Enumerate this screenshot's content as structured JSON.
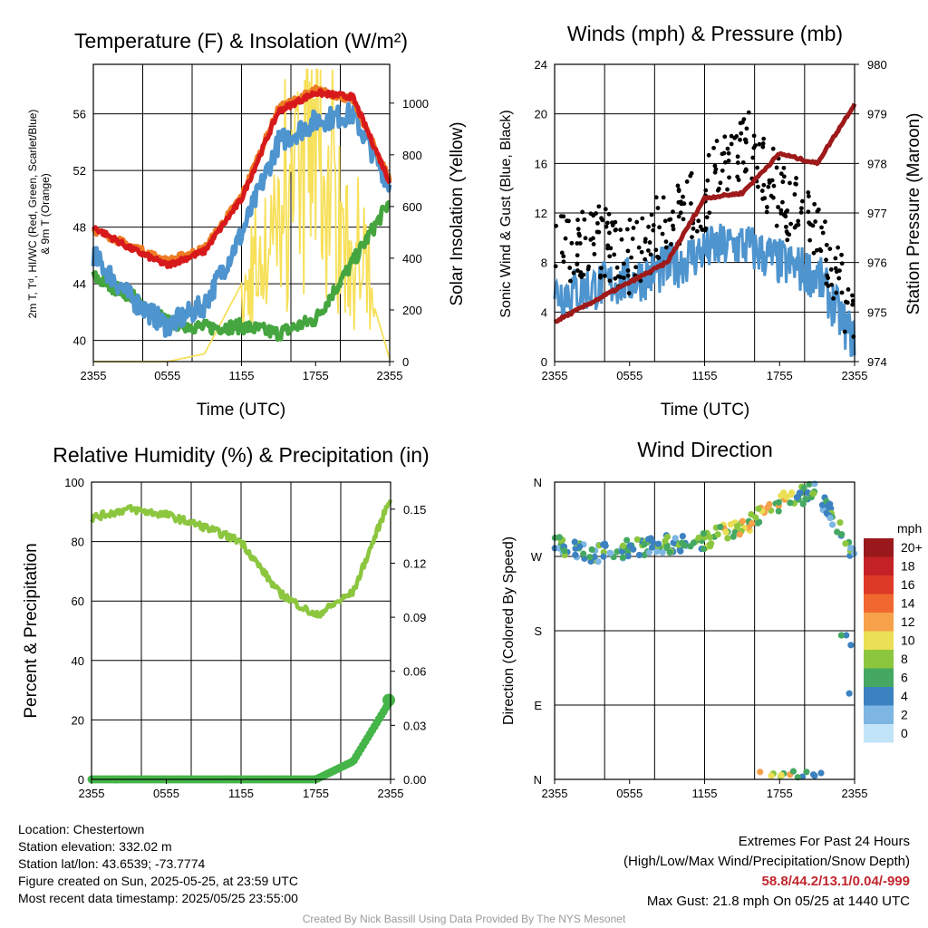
{
  "colors": {
    "temp": "#d7191c",
    "hiwc": "#ee7b22",
    "dew": "#45a53f",
    "t9m": "#4e94ce",
    "solar": "#f7e05a",
    "wind": "#4e94ce",
    "gust": "#000000",
    "pressure": "#9e1a1a",
    "rh": "#8cc63f",
    "precip": "#45b549"
  },
  "panels": {
    "temp": {
      "title": "Temperature (F) & Insolation (W/m²)",
      "ylabel_left_1": "2m T, Tᵈ, HI/WC (Red, Green, Scarlet/Blue)",
      "ylabel_left_2": "& 9m T (Orange)",
      "ylabel_right": "Solar Insolation (Yellow)",
      "xlabel": "Time (UTC)",
      "x_ticks": [
        "2355",
        "0555",
        "1155",
        "1755",
        "2355"
      ],
      "y_ticks_left": [
        "40",
        "44",
        "48",
        "52",
        "56"
      ],
      "y_ticks_right": [
        "0",
        "200",
        "400",
        "600",
        "800",
        "1000"
      ]
    },
    "wind": {
      "title": "Winds (mph) & Pressure (mb)",
      "ylabel_left": "Sonic Wind & Gust (Blue, Black)",
      "ylabel_right": "Station Pressure (Maroon)",
      "xlabel": "Time (UTC)",
      "x_ticks": [
        "2355",
        "0555",
        "1155",
        "1755",
        "2355"
      ],
      "y_ticks_left": [
        "0",
        "4",
        "8",
        "12",
        "16",
        "20",
        "24"
      ],
      "y_ticks_right": [
        "974",
        "975",
        "976",
        "977",
        "978",
        "979",
        "980"
      ]
    },
    "rh": {
      "title": "Relative Humidity (%) & Precipitation (in)",
      "ylabel_left": "Percent & Precipitation",
      "x_ticks": [
        "2355",
        "0555",
        "1155",
        "1755",
        "2355"
      ],
      "y_ticks_left": [
        "0",
        "20",
        "40",
        "60",
        "80",
        "100"
      ],
      "y_ticks_right": [
        "0.00",
        "0.03",
        "0.06",
        "0.09",
        "0.12",
        "0.15"
      ]
    },
    "dir": {
      "title": "Wind Direction",
      "ylabel_left": "Direction (Colored By Speed)",
      "x_ticks": [
        "2355",
        "0555",
        "1155",
        "1755",
        "2355"
      ],
      "y_ticks_left": [
        "N",
        "E",
        "S",
        "W",
        "N"
      ],
      "legend_title": "mph",
      "legend_labels": [
        "20+",
        "18",
        "16",
        "14",
        "12",
        "10",
        "8",
        "6",
        "4",
        "2",
        "0"
      ],
      "legend_colors": [
        "#99191c",
        "#c42126",
        "#de3a28",
        "#f0682f",
        "#f7a14a",
        "#eadf55",
        "#8cc63f",
        "#45a862",
        "#3c82c0",
        "#7db6e2",
        "#c2e4f8"
      ]
    }
  },
  "chart_data": [
    {
      "type": "line",
      "title": "Temperature (F) & Insolation (W/m²)",
      "xlabel": "Time (UTC)",
      "ylabel": "2m T, Td, HI/WC (Red, Green, Scarlet/Blue) & 9m T (Orange)",
      "y2label": "Solar Insolation (Yellow)",
      "x": [
        "2355",
        "0255",
        "0555",
        "0855",
        "1155",
        "1455",
        "1755",
        "2055",
        "2355"
      ],
      "ylim": [
        38.5,
        59.5
      ],
      "y2lim": [
        0,
        1150
      ],
      "series": [
        {
          "name": "2m T",
          "axis": "left",
          "values": [
            48.0,
            46.5,
            45.3,
            46.3,
            50.0,
            56.2,
            57.5,
            57.2,
            51.2
          ]
        },
        {
          "name": "9m T",
          "axis": "left",
          "values": [
            47.8,
            46.7,
            45.6,
            46.5,
            50.2,
            56.4,
            57.7,
            57.0,
            51.4
          ]
        },
        {
          "name": "HI/WC",
          "axis": "left",
          "values": [
            46.0,
            43.0,
            41.0,
            42.5,
            47.5,
            54.0,
            55.5,
            56.0,
            51.0
          ]
        },
        {
          "name": "Td",
          "axis": "left",
          "values": [
            44.5,
            43.2,
            41.3,
            40.9,
            41.0,
            40.5,
            41.5,
            45.5,
            49.8
          ]
        },
        {
          "name": "Solar",
          "axis": "right",
          "values": [
            0,
            0,
            0,
            30,
            300,
            650,
            1050,
            500,
            10
          ]
        }
      ]
    },
    {
      "type": "line",
      "title": "Winds (mph) & Pressure (mb)",
      "xlabel": "Time (UTC)",
      "ylabel": "Sonic Wind & Gust (Blue, Black)",
      "y2label": "Station Pressure (Maroon)",
      "x": [
        "2355",
        "0255",
        "0555",
        "0855",
        "1155",
        "1455",
        "1755",
        "2055",
        "2355"
      ],
      "ylim": [
        0,
        24
      ],
      "y2lim": [
        974,
        980
      ],
      "series": [
        {
          "name": "Sonic Wind",
          "axis": "left",
          "values": [
            5.5,
            6.0,
            6.5,
            7.5,
            9.0,
            9.5,
            8.0,
            7.0,
            1.5
          ]
        },
        {
          "name": "Gust",
          "axis": "left",
          "values": [
            9.0,
            10.0,
            8.5,
            11.0,
            13.5,
            18.0,
            13.5,
            10.0,
            3.5
          ]
        },
        {
          "name": "Station Pressure",
          "axis": "right",
          "values": [
            974.8,
            975.2,
            975.6,
            976.0,
            977.3,
            977.4,
            978.2,
            978.0,
            979.2
          ]
        }
      ]
    },
    {
      "type": "line",
      "title": "Relative Humidity (%) & Precipitation (in)",
      "ylabel": "Percent & Precipitation",
      "x": [
        "2355",
        "0255",
        "0555",
        "0855",
        "1155",
        "1455",
        "1755",
        "2055",
        "2355"
      ],
      "ylim": [
        0,
        100
      ],
      "y2lim": [
        0,
        0.165
      ],
      "series": [
        {
          "name": "Relative Humidity",
          "axis": "left",
          "values": [
            88,
            91,
            89,
            85,
            80,
            63,
            55,
            63,
            95
          ]
        },
        {
          "name": "Precipitation",
          "axis": "right",
          "values": [
            0,
            0,
            0,
            0,
            0,
            0,
            0,
            0.01,
            0.044
          ]
        }
      ]
    },
    {
      "type": "scatter",
      "title": "Wind Direction",
      "ylabel": "Direction (Colored By Speed)",
      "x": [
        "2355",
        "0255",
        "0555",
        "0855",
        "1155",
        "1455",
        "1755",
        "2055",
        "2355"
      ],
      "y_ticks": [
        "N",
        "E",
        "S",
        "W",
        "N"
      ],
      "series": [
        {
          "name": "Direction",
          "values": [
            285,
            272,
            280,
            285,
            290,
            305,
            335,
            350,
            270
          ]
        }
      ]
    }
  ],
  "footer": {
    "location": "Location: Chestertown",
    "elevation": "Station elevation: 332.02 m",
    "latlon": "Station lat/lon: 43.6539; -73.7774",
    "created": "Figure created on Sun, 2025-05-25, at 23:59 UTC",
    "recent": "Most recent data timestamp: 2025/05/25 23:55:00",
    "extremes_title": "Extremes For Past 24 Hours",
    "extremes_sub": "(High/Low/Max Wind/Precipitation/Snow Depth)",
    "extremes_values": "58.8/44.2/13.1/0.04/-999",
    "max_gust": "Max Gust: 21.8 mph On 05/25 at 1440 UTC",
    "credit": "Created By Nick Bassill Using Data Provided By The NYS Mesonet"
  }
}
